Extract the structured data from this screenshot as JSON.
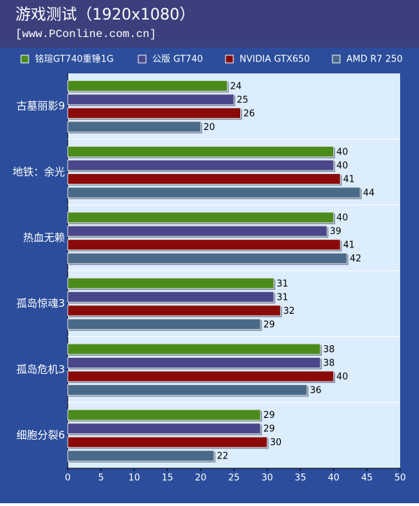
{
  "chart_data": {
    "type": "barh",
    "title": "游戏测试（1920x1080）",
    "subtitle": "[www.PConline.com.cn]",
    "categories": [
      "古墓丽影9",
      "地铁：余光",
      "热血无赖",
      "孤岛惊魂3",
      "孤岛危机3",
      "细胞分裂6"
    ],
    "series": [
      {
        "name": "铭瑄GT740重锤1G",
        "color": "#4b8b1b",
        "values": [
          24,
          40,
          40,
          31,
          38,
          29
        ]
      },
      {
        "name": "公版 GT740",
        "color": "#4a468a",
        "values": [
          25,
          40,
          39,
          31,
          38,
          29
        ]
      },
      {
        "name": "NVIDIA GTX650",
        "color": "#8a0a0a",
        "values": [
          26,
          41,
          41,
          32,
          40,
          30
        ]
      },
      {
        "name": "AMD R7 250",
        "color": "#4a6a8a",
        "values": [
          20,
          44,
          42,
          29,
          36,
          22
        ]
      }
    ],
    "xlim": [
      0,
      50
    ],
    "xticks": [
      0,
      5,
      10,
      15,
      20,
      25,
      30,
      35,
      40,
      45,
      50
    ]
  }
}
